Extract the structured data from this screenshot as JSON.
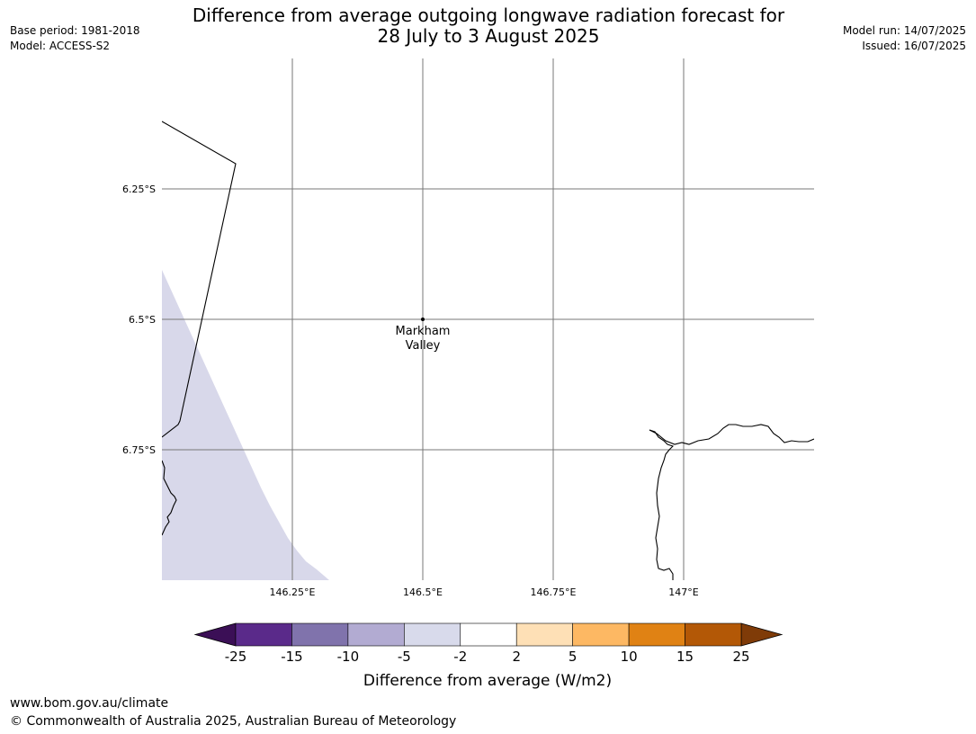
{
  "header": {
    "title_line1": "Difference from average outgoing longwave radiation forecast for",
    "title_line2": "28 July to 3 August 2025",
    "base_period": "Base period: 1981-2018",
    "model": "Model: ACCESS-S2",
    "model_run": "Model run: 14/07/2025",
    "issued": "Issued: 16/07/2025"
  },
  "map": {
    "lon_range": [
      146.0,
      147.25
    ],
    "lat_range": [
      -6.0,
      -7.0
    ],
    "lat_ticks": [
      {
        "value": -6.25,
        "label": "6.25°S"
      },
      {
        "value": -6.5,
        "label": "6.5°S"
      },
      {
        "value": -6.75,
        "label": "6.75°S"
      }
    ],
    "lon_ticks": [
      {
        "value": 146.25,
        "label": "146.25°E"
      },
      {
        "value": 146.5,
        "label": "146.5°E"
      },
      {
        "value": 146.75,
        "label": "146.75°E"
      },
      {
        "value": 147.0,
        "label": "147°E"
      }
    ],
    "place": {
      "lon": 146.5,
      "lat": -6.5,
      "label_line1": "Markham",
      "label_line2": "Valley"
    },
    "shaded_region": {
      "category": "-5 to -2",
      "color": "#d8d8ea"
    }
  },
  "colorbar": {
    "label": "Difference from average (W/m2)",
    "ticks": [
      "-25",
      "-15",
      "-10",
      "-5",
      "-2",
      "2",
      "5",
      "10",
      "15",
      "25"
    ],
    "under_color": "#3b0f56",
    "over_color": "#7f3b08",
    "colors": [
      "#5a2a8a",
      "#8073ac",
      "#b2abd2",
      "#d8daeb",
      "#ffffff",
      "#fee0b6",
      "#fdb863",
      "#e08214",
      "#b35806"
    ]
  },
  "footer": {
    "url": "www.bom.gov.au/climate",
    "copyright": "© Commonwealth of Australia 2025, Australian Bureau of Meteorology"
  }
}
